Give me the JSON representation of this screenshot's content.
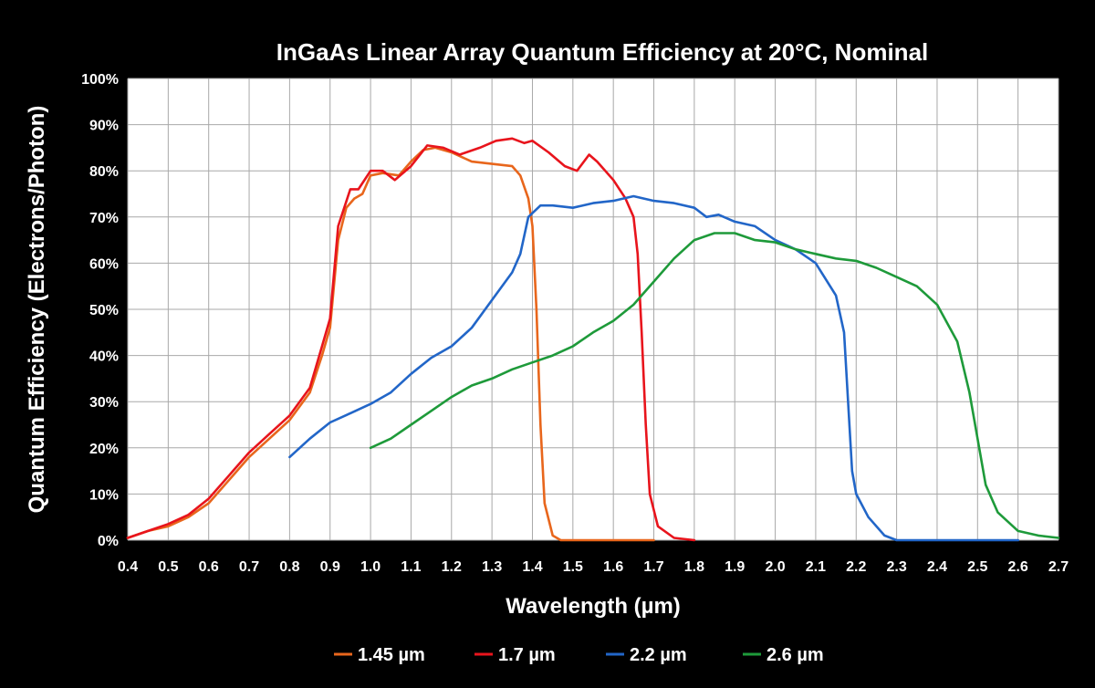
{
  "chart_data": {
    "type": "line",
    "title": "InGaAs Linear Array Quantum Efficiency at 20°C, Nominal",
    "xlabel": "Wavelength (µm)",
    "ylabel": "Quantum Efficiency (Electrons/Photon)",
    "xlim": [
      0.4,
      2.7
    ],
    "ylim": [
      0,
      100
    ],
    "x_ticks": [
      "0.4",
      "0.5",
      "0.6",
      "0.7",
      "0.8",
      "0.9",
      "1.0",
      "1.1",
      "1.2",
      "1.3",
      "1.4",
      "1.5",
      "1.6",
      "1.7",
      "1.8",
      "1.9",
      "2.0",
      "2.1",
      "2.2",
      "2.3",
      "2.4",
      "2.5",
      "2.6",
      "2.7"
    ],
    "y_ticks": [
      "0%",
      "10%",
      "20%",
      "30%",
      "40%",
      "50%",
      "60%",
      "70%",
      "80%",
      "90%",
      "100%"
    ],
    "grid": true,
    "legend_position": "bottom",
    "series": [
      {
        "name": "1.45 µm",
        "color": "#e8661c",
        "points": [
          [
            0.4,
            0.5
          ],
          [
            0.45,
            2
          ],
          [
            0.5,
            3
          ],
          [
            0.55,
            5
          ],
          [
            0.6,
            8
          ],
          [
            0.65,
            13
          ],
          [
            0.7,
            18
          ],
          [
            0.75,
            22
          ],
          [
            0.8,
            26
          ],
          [
            0.85,
            32
          ],
          [
            0.88,
            40
          ],
          [
            0.9,
            46
          ],
          [
            0.92,
            65
          ],
          [
            0.94,
            72
          ],
          [
            0.96,
            74
          ],
          [
            0.98,
            75
          ],
          [
            1.0,
            79
          ],
          [
            1.03,
            79.5
          ],
          [
            1.07,
            79
          ],
          [
            1.1,
            82
          ],
          [
            1.13,
            84.5
          ],
          [
            1.16,
            85
          ],
          [
            1.2,
            84
          ],
          [
            1.25,
            82
          ],
          [
            1.3,
            81.5
          ],
          [
            1.35,
            81
          ],
          [
            1.37,
            79
          ],
          [
            1.39,
            74
          ],
          [
            1.4,
            68
          ],
          [
            1.41,
            50
          ],
          [
            1.42,
            25
          ],
          [
            1.43,
            8
          ],
          [
            1.45,
            1
          ],
          [
            1.47,
            0
          ],
          [
            1.5,
            0
          ],
          [
            1.6,
            0
          ],
          [
            1.7,
            0
          ]
        ]
      },
      {
        "name": "1.7 µm",
        "color": "#e8141c",
        "points": [
          [
            0.4,
            0.5
          ],
          [
            0.45,
            2
          ],
          [
            0.5,
            3.5
          ],
          [
            0.55,
            5.5
          ],
          [
            0.6,
            9
          ],
          [
            0.65,
            14
          ],
          [
            0.7,
            19
          ],
          [
            0.75,
            23
          ],
          [
            0.8,
            27
          ],
          [
            0.85,
            33
          ],
          [
            0.88,
            42
          ],
          [
            0.9,
            48
          ],
          [
            0.92,
            68
          ],
          [
            0.95,
            76
          ],
          [
            0.97,
            76
          ],
          [
            1.0,
            80
          ],
          [
            1.03,
            80
          ],
          [
            1.06,
            78
          ],
          [
            1.1,
            81
          ],
          [
            1.14,
            85.5
          ],
          [
            1.18,
            85
          ],
          [
            1.22,
            83.5
          ],
          [
            1.27,
            85
          ],
          [
            1.31,
            86.5
          ],
          [
            1.35,
            87
          ],
          [
            1.38,
            86
          ],
          [
            1.4,
            86.5
          ],
          [
            1.44,
            84
          ],
          [
            1.48,
            81
          ],
          [
            1.51,
            80
          ],
          [
            1.54,
            83.5
          ],
          [
            1.56,
            82
          ],
          [
            1.6,
            78
          ],
          [
            1.63,
            74
          ],
          [
            1.65,
            70
          ],
          [
            1.66,
            62
          ],
          [
            1.67,
            45
          ],
          [
            1.68,
            25
          ],
          [
            1.69,
            10
          ],
          [
            1.71,
            3
          ],
          [
            1.75,
            0.5
          ],
          [
            1.8,
            0
          ]
        ]
      },
      {
        "name": "2.2 µm",
        "color": "#2266c8",
        "points": [
          [
            0.8,
            18
          ],
          [
            0.85,
            22
          ],
          [
            0.9,
            25.5
          ],
          [
            0.95,
            27.5
          ],
          [
            1.0,
            29.5
          ],
          [
            1.05,
            32
          ],
          [
            1.1,
            36
          ],
          [
            1.15,
            39.5
          ],
          [
            1.2,
            42
          ],
          [
            1.25,
            46
          ],
          [
            1.3,
            52
          ],
          [
            1.35,
            58
          ],
          [
            1.37,
            62
          ],
          [
            1.39,
            70
          ],
          [
            1.42,
            72.5
          ],
          [
            1.45,
            72.5
          ],
          [
            1.5,
            72
          ],
          [
            1.55,
            73
          ],
          [
            1.6,
            73.5
          ],
          [
            1.65,
            74.5
          ],
          [
            1.7,
            73.5
          ],
          [
            1.75,
            73
          ],
          [
            1.8,
            72
          ],
          [
            1.83,
            70
          ],
          [
            1.86,
            70.5
          ],
          [
            1.9,
            69
          ],
          [
            1.95,
            68
          ],
          [
            2.0,
            65
          ],
          [
            2.05,
            63
          ],
          [
            2.1,
            60
          ],
          [
            2.15,
            53
          ],
          [
            2.17,
            45
          ],
          [
            2.18,
            30
          ],
          [
            2.19,
            15
          ],
          [
            2.2,
            10
          ],
          [
            2.23,
            5
          ],
          [
            2.27,
            1
          ],
          [
            2.3,
            0
          ],
          [
            2.4,
            0
          ],
          [
            2.5,
            0
          ],
          [
            2.6,
            0
          ]
        ]
      },
      {
        "name": "2.6 µm",
        "color": "#1e9a3a",
        "points": [
          [
            1.0,
            20
          ],
          [
            1.05,
            22
          ],
          [
            1.1,
            25
          ],
          [
            1.15,
            28
          ],
          [
            1.2,
            31
          ],
          [
            1.25,
            33.5
          ],
          [
            1.3,
            35
          ],
          [
            1.35,
            37
          ],
          [
            1.4,
            38.5
          ],
          [
            1.45,
            40
          ],
          [
            1.5,
            42
          ],
          [
            1.55,
            45
          ],
          [
            1.6,
            47.5
          ],
          [
            1.65,
            51
          ],
          [
            1.7,
            56
          ],
          [
            1.75,
            61
          ],
          [
            1.8,
            65
          ],
          [
            1.85,
            66.5
          ],
          [
            1.9,
            66.5
          ],
          [
            1.95,
            65
          ],
          [
            2.0,
            64.5
          ],
          [
            2.05,
            63
          ],
          [
            2.1,
            62
          ],
          [
            2.15,
            61
          ],
          [
            2.2,
            60.5
          ],
          [
            2.25,
            59
          ],
          [
            2.3,
            57
          ],
          [
            2.35,
            55
          ],
          [
            2.4,
            51
          ],
          [
            2.45,
            43
          ],
          [
            2.48,
            32
          ],
          [
            2.5,
            22
          ],
          [
            2.52,
            12
          ],
          [
            2.55,
            6
          ],
          [
            2.6,
            2
          ],
          [
            2.65,
            1
          ],
          [
            2.7,
            0.5
          ]
        ]
      }
    ]
  }
}
